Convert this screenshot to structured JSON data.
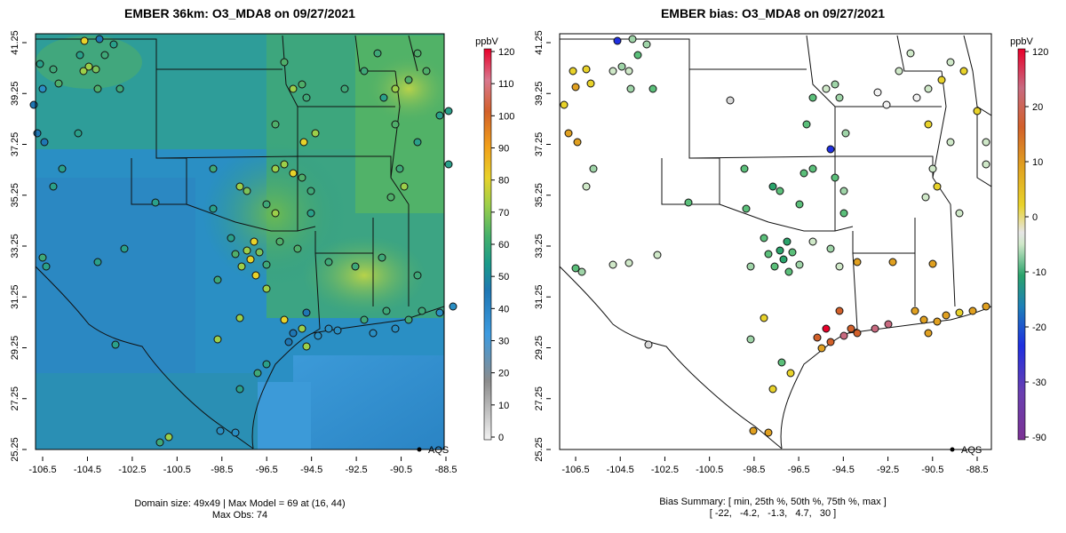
{
  "left_panel": {
    "title": "EMBER 36km: O3_MDA8 on 09/27/2021",
    "x_ticks": [
      "-106.5",
      "-104.5",
      "-102.5",
      "-100.5",
      "-98.5",
      "-96.5",
      "-94.5",
      "-92.5",
      "-90.5",
      "-88.5"
    ],
    "y_ticks": [
      "41.25",
      "39.25",
      "37.25",
      "35.25",
      "33.25",
      "31.25",
      "29.25",
      "27.25",
      "25.25"
    ],
    "legend_label": "AQS",
    "caption_line1": "Domain size: 49x49 | Max Model = 69 at (16, 44)",
    "caption_line2": "Max Obs: 74",
    "colorbar": {
      "unit": "ppbV",
      "labels": [
        "120",
        "110",
        "100",
        "90",
        "80",
        "70",
        "60",
        "50",
        "40",
        "30",
        "20",
        "10",
        "0"
      ]
    }
  },
  "right_panel": {
    "title": "EMBER bias: O3_MDA8 on 09/27/2021",
    "x_ticks": [
      "-106.5",
      "-104.5",
      "-102.5",
      "-100.5",
      "-98.5",
      "-96.5",
      "-94.5",
      "-92.5",
      "-90.5",
      "-88.5"
    ],
    "y_ticks": [
      "41.25",
      "39.25",
      "37.25",
      "35.25",
      "33.25",
      "31.25",
      "29.25",
      "27.25",
      "25.25"
    ],
    "legend_label": "AQS",
    "caption_line1": "Bias Summary: [ min, 25th %, 50th %, 75th %, max ]",
    "caption_line2": "[ -22,   -4.2,   -1.3,   4.7,   30 ]",
    "colorbar": {
      "unit": "ppbV",
      "labels": [
        "120",
        "20",
        "10",
        "0",
        "-10",
        "-20",
        "-30",
        "-90"
      ]
    }
  }
}
